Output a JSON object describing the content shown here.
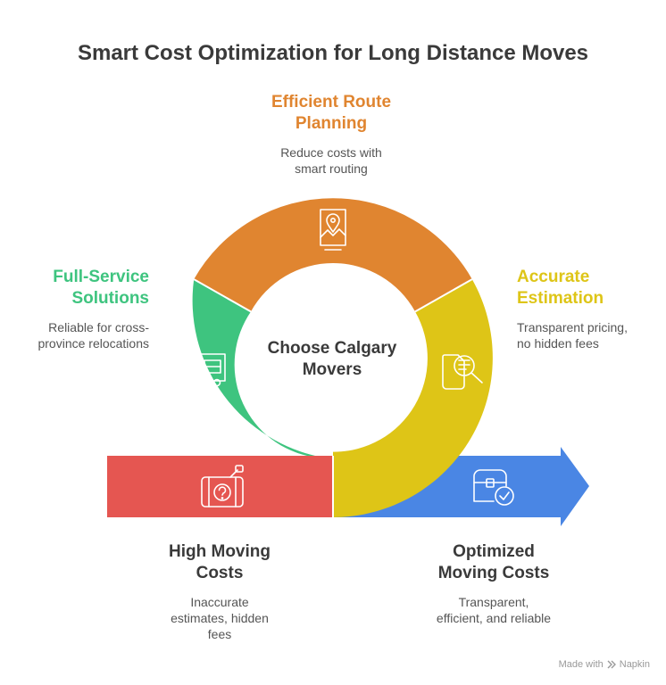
{
  "title": "Smart Cost Optimization for Long Distance Moves",
  "center": {
    "line1": "Choose Calgary",
    "line2": "Movers"
  },
  "segments": [
    {
      "id": "route",
      "heading_l1": "Efficient Route",
      "heading_l2": "Planning",
      "desc_l1": "Reduce costs with",
      "desc_l2": "smart routing",
      "color": "#E08530",
      "icon": "map-pin-icon"
    },
    {
      "id": "estimation",
      "heading_l1": "Accurate",
      "heading_l2": "Estimation",
      "desc_l1": "Transparent pricing,",
      "desc_l2": "no hidden fees",
      "color": "#DEC517",
      "icon": "document-search-icon"
    },
    {
      "id": "full-service",
      "heading_l1": "Full-Service",
      "heading_l2": "Solutions",
      "desc_l1": "Reliable for cross-",
      "desc_l2": "province relocations",
      "color": "#3EC47F",
      "icon": "truck-icon"
    }
  ],
  "start": {
    "heading_l1": "High Moving",
    "heading_l2": "Costs",
    "desc_l1": "Inaccurate",
    "desc_l2": "estimates, hidden",
    "desc_l3": "fees",
    "color": "#E55651",
    "icon": "camera-question-icon"
  },
  "end": {
    "heading_l1": "Optimized",
    "heading_l2": "Moving Costs",
    "desc_l1": "Transparent,",
    "desc_l2": "efficient, and reliable",
    "color": "#4A86E4",
    "icon": "chest-check-icon"
  },
  "footer": {
    "made_with": "Made with",
    "brand": "Napkin"
  }
}
